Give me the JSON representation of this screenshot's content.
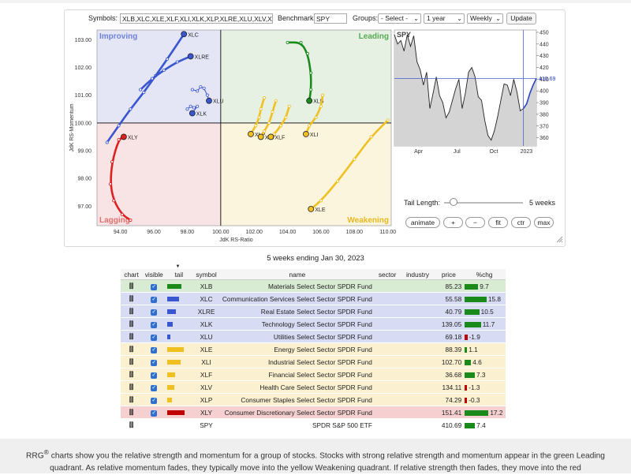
{
  "controls": {
    "symbols_label": "Symbols:",
    "symbols_value": "XLB,XLC,XLE,XLF,XLI,XLK,XLP,XLRE,XLU,XLV,XLY",
    "benchmark_label": "Benchmark:",
    "benchmark_value": "SPY",
    "groups_label": "Groups:",
    "groups_value": "- Select -",
    "period_value": "1 year",
    "interval_value": "Weekly",
    "update_label": "Update"
  },
  "rrg": {
    "quadrants": {
      "improving": "Improving",
      "leading": "Leading",
      "lagging": "Lagging",
      "weakening": "Weakening"
    },
    "xlabel": "JdK RS-Ratio",
    "ylabel": "JdK RS-Momentum",
    "x_ticks": [
      "94.00",
      "96.00",
      "98.00",
      "100.00",
      "102.00",
      "104.00",
      "106.00",
      "108.00",
      "110.00"
    ],
    "y_ticks": [
      "103.00",
      "102.00",
      "101.00",
      "100.00",
      "99.00",
      "98.00",
      "97.00"
    ],
    "xlim": [
      92.6,
      110.2
    ],
    "ylim": [
      96.3,
      103.35
    ],
    "series": [
      {
        "symbol": "XLC",
        "color": "#3a55d0",
        "points": [
          [
            93.2,
            99.3
          ],
          [
            93.9,
            99.9
          ],
          [
            94.6,
            100.5
          ],
          [
            95.4,
            101.1
          ],
          [
            96.1,
            101.7
          ],
          [
            96.8,
            102.3
          ],
          [
            97.8,
            103.2
          ]
        ]
      },
      {
        "symbol": "XLRE",
        "color": "#3a55d0",
        "points": [
          [
            95.2,
            101.2
          ],
          [
            95.9,
            101.6
          ],
          [
            96.6,
            101.9
          ],
          [
            97.4,
            102.2
          ],
          [
            98.2,
            102.4
          ]
        ]
      },
      {
        "symbol": "XLU",
        "color": "#3a55d0",
        "points": [
          [
            98.3,
            101.2
          ],
          [
            98.6,
            101.15
          ],
          [
            98.8,
            101.3
          ],
          [
            99.0,
            101.25
          ],
          [
            99.2,
            101.0
          ],
          [
            99.3,
            100.8
          ]
        ]
      },
      {
        "symbol": "XLK",
        "color": "#3a55d0",
        "points": [
          [
            98.0,
            100.5
          ],
          [
            98.2,
            100.6
          ],
          [
            98.4,
            100.55
          ],
          [
            98.6,
            100.6
          ],
          [
            98.3,
            100.35
          ]
        ]
      },
      {
        "symbol": "XLY",
        "color": "#dd2020",
        "points": [
          [
            94.6,
            96.5
          ],
          [
            94.1,
            96.7
          ],
          [
            93.6,
            97.2
          ],
          [
            93.4,
            97.8
          ],
          [
            93.5,
            98.6
          ],
          [
            93.9,
            99.4
          ],
          [
            94.2,
            99.5
          ]
        ]
      },
      {
        "symbol": "XLB",
        "color": "#1a8a1a",
        "points": [
          [
            104.0,
            102.9
          ],
          [
            104.8,
            102.9
          ],
          [
            105.2,
            102.5
          ],
          [
            105.4,
            101.8
          ],
          [
            105.4,
            101.2
          ],
          [
            105.3,
            100.8
          ]
        ]
      },
      {
        "symbol": "XLP",
        "color": "#f0c020",
        "points": [
          [
            102.6,
            100.9
          ],
          [
            102.4,
            100.5
          ],
          [
            102.3,
            100.2
          ],
          [
            102.1,
            99.9
          ],
          [
            101.8,
            99.6
          ]
        ]
      },
      {
        "symbol": "XLV",
        "color": "#f0c020",
        "points": [
          [
            103.3,
            100.8
          ],
          [
            103.1,
            100.4
          ],
          [
            102.9,
            100.0
          ],
          [
            102.6,
            99.7
          ],
          [
            102.4,
            99.5
          ]
        ]
      },
      {
        "symbol": "XLF",
        "color": "#f0c020",
        "points": [
          [
            104.1,
            100.6
          ],
          [
            103.9,
            100.2
          ],
          [
            103.6,
            99.9
          ],
          [
            103.2,
            99.6
          ],
          [
            103.0,
            99.5
          ]
        ]
      },
      {
        "symbol": "XLI",
        "color": "#f0c020",
        "points": [
          [
            106.1,
            101.0
          ],
          [
            106.0,
            100.6
          ],
          [
            105.7,
            100.2
          ],
          [
            105.3,
            99.9
          ],
          [
            105.1,
            99.6
          ]
        ]
      },
      {
        "symbol": "XLE",
        "color": "#f0c020",
        "points": [
          [
            110.0,
            100.1
          ],
          [
            109.0,
            99.5
          ],
          [
            108.0,
            98.7
          ],
          [
            107.0,
            97.9
          ],
          [
            106.0,
            97.2
          ],
          [
            105.4,
            96.9
          ]
        ]
      }
    ]
  },
  "spy_chart": {
    "title": "SPY",
    "last_value": "410.69",
    "y_ticks": [
      "450",
      "440",
      "430",
      "420",
      "410",
      "400",
      "390",
      "380",
      "370",
      "360"
    ],
    "x_ticks": [
      "Apr",
      "Jul",
      "Oct",
      "2023"
    ],
    "ylim": [
      353,
      452
    ],
    "values": [
      448,
      440,
      443,
      434,
      448,
      438,
      447,
      425,
      418,
      405,
      416,
      385,
      398,
      412,
      396,
      390,
      377,
      382,
      392,
      402,
      410,
      385,
      398,
      416,
      420,
      412,
      395,
      392,
      375,
      362,
      358,
      366,
      378,
      392,
      406,
      405,
      396,
      410,
      399,
      383,
      385,
      389,
      398,
      405,
      410.69
    ]
  },
  "tail_length": {
    "label": "Tail Length:",
    "value_label": "5 weeks"
  },
  "actions": {
    "animate": "animate",
    "plus": "+",
    "minus": "−",
    "fit": "fit",
    "ctr": "ctr",
    "max": "max"
  },
  "caption": "5 weeks ending Jan 30, 2023",
  "table": {
    "headers": {
      "chart": "chart",
      "visible": "visible",
      "tail": "tail",
      "symbol": "symbol",
      "name": "name",
      "sector": "sector",
      "industry": "industry",
      "price": "price",
      "pctchg": "%chg"
    },
    "rows": [
      {
        "symbol": "XLB",
        "name": "Materials Select Sector SPDR Fund",
        "price": "85.23",
        "pct": "9.7",
        "pctval": 9.7,
        "tail_color": "#1a8a1a",
        "tail_w": 18,
        "bg": "#d8ecd3"
      },
      {
        "symbol": "XLC",
        "name": "Communication Services Select Sector SPDR Fund",
        "price": "55.58",
        "pct": "15.8",
        "pctval": 15.8,
        "tail_color": "#3a55d0",
        "tail_w": 15,
        "bg": "#d7dbf4"
      },
      {
        "symbol": "XLRE",
        "name": "Real Estate Select Sector SPDR Fund",
        "price": "40.79",
        "pct": "10.5",
        "pctval": 10.5,
        "tail_color": "#3a55d0",
        "tail_w": 11,
        "bg": "#d7dbf4"
      },
      {
        "symbol": "XLK",
        "name": "Technology Select Sector SPDR Fund",
        "price": "139.05",
        "pct": "11.7",
        "pctval": 11.7,
        "tail_color": "#3a55d0",
        "tail_w": 7,
        "bg": "#d7dbf4"
      },
      {
        "symbol": "XLU",
        "name": "Utilities Select Sector SPDR Fund",
        "price": "69.18",
        "pct": "-1.9",
        "pctval": -1.9,
        "tail_color": "#3a55d0",
        "tail_w": 4,
        "bg": "#d7dbf4"
      },
      {
        "symbol": "XLE",
        "name": "Energy Select Sector SPDR Fund",
        "price": "88.39",
        "pct": "1.1",
        "pctval": 1.1,
        "tail_color": "#f0c020",
        "tail_w": 21,
        "bg": "#fbf0cf"
      },
      {
        "symbol": "XLI",
        "name": "Industrial Select Sector SPDR Fund",
        "price": "102.70",
        "pct": "4.6",
        "pctval": 4.6,
        "tail_color": "#f0c020",
        "tail_w": 17,
        "bg": "#fbf0cf"
      },
      {
        "symbol": "XLF",
        "name": "Financial Select Sector SPDR Fund",
        "price": "36.68",
        "pct": "7.3",
        "pctval": 7.3,
        "tail_color": "#f0c020",
        "tail_w": 10,
        "bg": "#fbf0cf"
      },
      {
        "symbol": "XLV",
        "name": "Health Care Select Sector SPDR Fund",
        "price": "134.11",
        "pct": "-1.3",
        "pctval": -1.3,
        "tail_color": "#f0c020",
        "tail_w": 9,
        "bg": "#fbf0cf"
      },
      {
        "symbol": "XLP",
        "name": "Consumer Staples Select Sector SPDR Fund",
        "price": "74.29",
        "pct": "-0.3",
        "pctval": -0.3,
        "tail_color": "#f0c020",
        "tail_w": 6,
        "bg": "#fbf0cf"
      },
      {
        "symbol": "XLY",
        "name": "Consumer Discretionary Select Sector SPDR Fund",
        "price": "151.41",
        "pct": "17.2",
        "pctval": 17.2,
        "tail_color": "#c00000",
        "tail_w": 22,
        "bg": "#f6d0d0"
      },
      {
        "symbol": "SPY",
        "name": "SPDR S&P 500 ETF",
        "price": "410.69",
        "pct": "7.4",
        "pctval": 7.4,
        "tail_color": "",
        "tail_w": 0,
        "bg": "#ffffff"
      }
    ]
  },
  "footer_text_html": "RRG<sup>®</sup> charts show you the relative strength and momentum for a group of stocks. Stocks with strong relative strength and momentum appear in the green Leading quadrant. As relative momentum fades, they typically move into the yellow Weakening quadrant. If relative strength then fades, they move into the red",
  "footer": {
    "brand": "RRG",
    "mark": "®",
    "text": " charts show you the relative strength and momentum for a group of stocks. Stocks with strong relative strength and momentum appear in the green Leading quadrant. As relative momentum fades, they typically move into the yellow Weakening quadrant. If relative strength then fades, they move into the red"
  }
}
